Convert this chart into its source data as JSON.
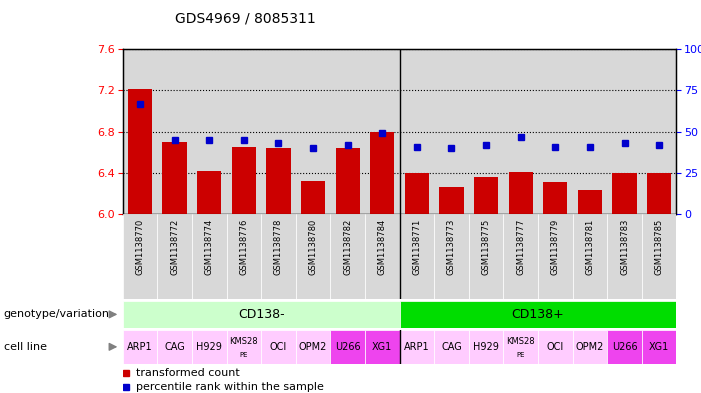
{
  "title": "GDS4969 / 8085311",
  "samples": [
    "GSM1138770",
    "GSM1138772",
    "GSM1138774",
    "GSM1138776",
    "GSM1138778",
    "GSM1138780",
    "GSM1138782",
    "GSM1138784",
    "GSM1138771",
    "GSM1138773",
    "GSM1138775",
    "GSM1138777",
    "GSM1138779",
    "GSM1138781",
    "GSM1138783",
    "GSM1138785"
  ],
  "transformed_count": [
    7.21,
    6.7,
    6.42,
    6.65,
    6.64,
    6.32,
    6.64,
    6.8,
    6.4,
    6.26,
    6.36,
    6.41,
    6.31,
    6.23,
    6.4,
    6.4
  ],
  "percentile_rank": [
    67,
    45,
    45,
    45,
    43,
    40,
    42,
    49,
    41,
    40,
    42,
    47,
    41,
    41,
    43,
    42
  ],
  "ylim_left": [
    6.0,
    7.6
  ],
  "ylim_right": [
    0,
    100
  ],
  "yticks_left": [
    6.0,
    6.4,
    6.8,
    7.2,
    7.6
  ],
  "yticks_right": [
    0,
    25,
    50,
    75,
    100
  ],
  "bar_color": "#cc0000",
  "dot_color": "#0000cc",
  "bar_bottom": 6.0,
  "genotype_groups": [
    {
      "label": "CD138-",
      "start": 0,
      "end": 8,
      "color": "#ccffcc"
    },
    {
      "label": "CD138+",
      "start": 8,
      "end": 16,
      "color": "#00dd00"
    }
  ],
  "cell_lines": [
    "ARP1",
    "CAG",
    "H929",
    "KMS28\nPE",
    "OCI",
    "OPM2",
    "U266",
    "XG1",
    "ARP1",
    "CAG",
    "H929",
    "KMS28\nPE",
    "OCI",
    "OPM2",
    "U266",
    "XG1"
  ],
  "cell_line_colors": [
    "#ffccff",
    "#ffccff",
    "#ffccff",
    "#ffccff",
    "#ffccff",
    "#ffccff",
    "#ee44ee",
    "#ee44ee",
    "#ffccff",
    "#ffccff",
    "#ffccff",
    "#ffccff",
    "#ffccff",
    "#ffccff",
    "#ee44ee",
    "#ee44ee"
  ],
  "legend_bar_label": "transformed count",
  "legend_dot_label": "percentile rank within the sample",
  "bg_color": "#ffffff",
  "col_bg": "#d8d8d8",
  "genotype_label": "genotype/variation",
  "cellline_label": "cell line"
}
